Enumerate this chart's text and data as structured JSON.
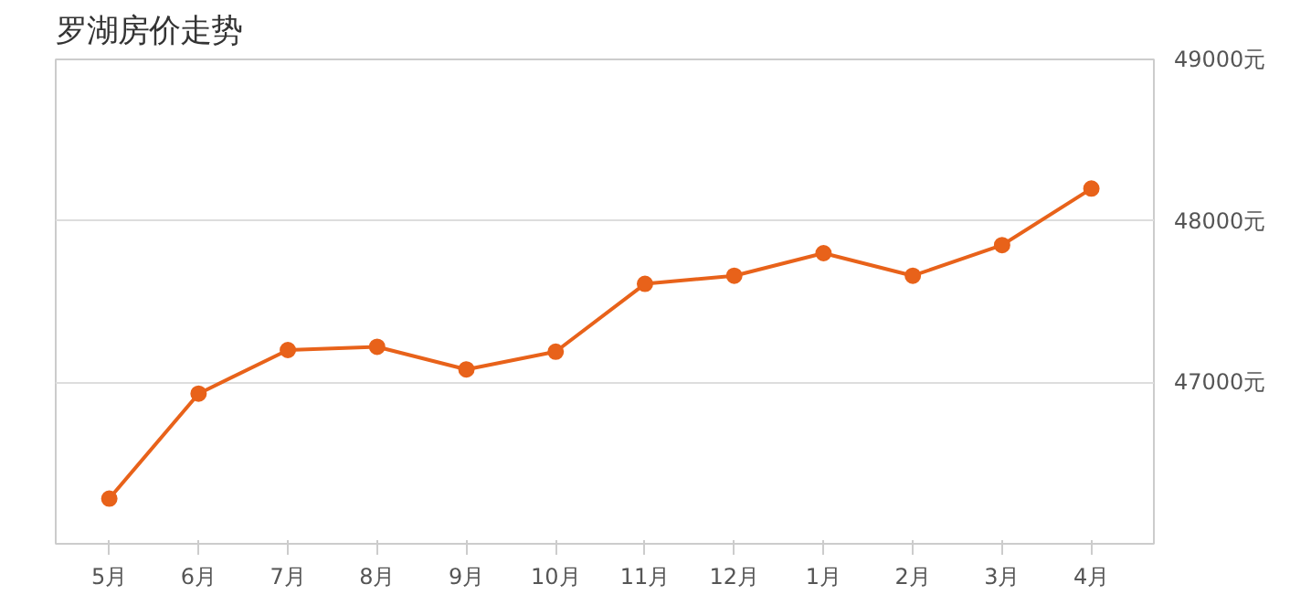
{
  "chart_data": {
    "type": "line",
    "title": "罗湖房价走势",
    "categories": [
      "5月",
      "6月",
      "7月",
      "8月",
      "9月",
      "10月",
      "11月",
      "12月",
      "1月",
      "2月",
      "3月",
      "4月"
    ],
    "series": [
      {
        "color": "#e8621a",
        "values": [
          46280,
          46930,
          47200,
          47220,
          47080,
          47190,
          47610,
          47660,
          47800,
          47660,
          47850,
          48200
        ]
      }
    ],
    "ylim": [
      46000,
      49000
    ],
    "yticks": [
      {
        "value": 47000,
        "label": "47000元"
      },
      {
        "value": 48000,
        "label": "48000元"
      },
      {
        "value": 49000,
        "label": "49000元"
      }
    ],
    "grid": "y",
    "marker": "circle",
    "line_style": "solid"
  }
}
